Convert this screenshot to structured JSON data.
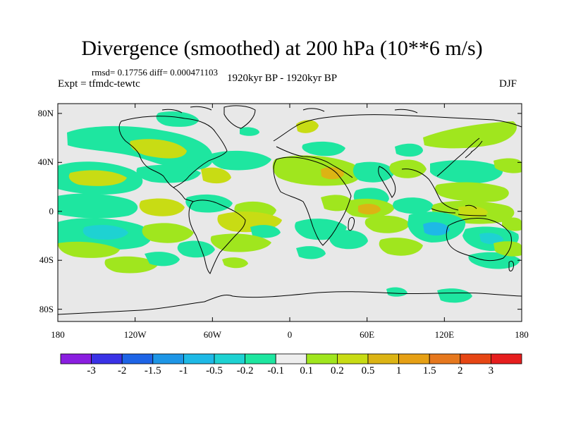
{
  "title": "Divergence (smoothed) at 200 hPa (10**6 m/s)",
  "stats": "rmsd= 0.17756 diff= 0.000471103",
  "experiment": "Expt = tfmdc-tewtc",
  "period": "1920kyr BP - 1920kyr BP",
  "season": "DJF",
  "axes": {
    "y_ticks": [
      {
        "value": 80,
        "label": "80N"
      },
      {
        "value": 40,
        "label": "40N"
      },
      {
        "value": 0,
        "label": "0"
      },
      {
        "value": -40,
        "label": "40S"
      },
      {
        "value": -80,
        "label": "80S"
      }
    ],
    "x_ticks": [
      {
        "value": -180,
        "label": "180"
      },
      {
        "value": -120,
        "label": "120W"
      },
      {
        "value": -60,
        "label": "60W"
      },
      {
        "value": 0,
        "label": "0"
      },
      {
        "value": 60,
        "label": "60E"
      },
      {
        "value": 120,
        "label": "120E"
      },
      {
        "value": 180,
        "label": "180"
      }
    ]
  },
  "colorbar": {
    "colors": [
      "#8a1ee0",
      "#3a32e6",
      "#1e64e6",
      "#1e96e6",
      "#1eb9e6",
      "#1ed2d2",
      "#1ee6a0",
      "#eeeeee",
      "#a0e61e",
      "#c8dc14",
      "#dcb414",
      "#e6a014",
      "#e6781e",
      "#e64614",
      "#e61e1e"
    ],
    "labels": [
      "-3",
      "-2",
      "-1.5",
      "-1",
      "-0.5",
      "-0.2",
      "-0.1",
      "0.1",
      "0.2",
      "0.5",
      "1",
      "1.5",
      "2",
      "3"
    ]
  },
  "field_colors": {
    "background": "#e8e8e8",
    "neg_weak": "#1ee6a0",
    "neg_mid": "#1ed2d2",
    "neg_strong": "#1eb9e6",
    "pos_weak": "#a0e61e",
    "pos_mid": "#c8dc14",
    "pos_strong": "#dcb414"
  }
}
